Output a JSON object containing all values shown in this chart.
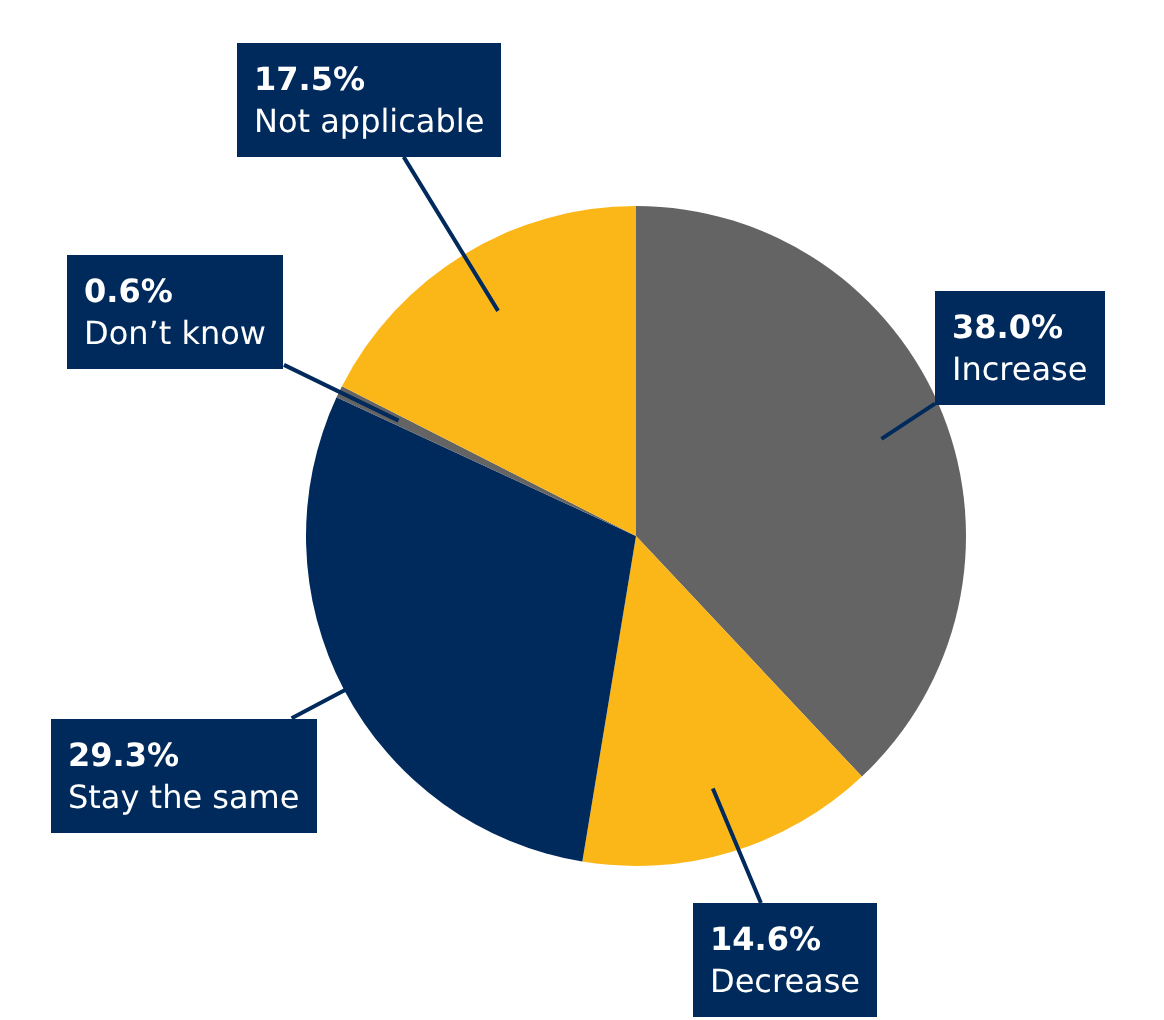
{
  "chart_data": {
    "type": "pie",
    "categories": [
      "Increase",
      "Decrease",
      "Stay the same",
      "Don’t know",
      "Not applicable"
    ],
    "values": [
      38.0,
      14.6,
      29.3,
      0.6,
      17.5
    ],
    "value_labels": [
      "38.0%",
      "14.6%",
      "29.3%",
      "0.6%",
      "17.5%"
    ],
    "colors": [
      "#646464",
      "#fbb617",
      "#002a5c",
      "#646464",
      "#fbb617"
    ],
    "legend": false
  }
}
